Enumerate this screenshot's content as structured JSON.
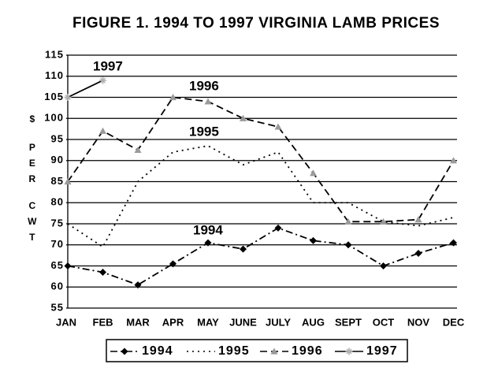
{
  "chart_data": {
    "type": "line",
    "title": "FIGURE 1.  1994 TO 1997 VIRGINIA LAMB PRICES",
    "ylabel": [
      "$",
      "PER",
      "CWT"
    ],
    "categories": [
      "JAN",
      "FEB",
      "MAR",
      "APR",
      "MAY",
      "JUNE",
      "JULY",
      "AUG",
      "SEPT",
      "OCT",
      "NOV",
      "DEC"
    ],
    "series": [
      {
        "name": "1994",
        "color": "#000000",
        "marker_color": "#000000",
        "dash": "dashdot",
        "marker": "diamond",
        "values": [
          65,
          63.5,
          60.5,
          65.5,
          70.5,
          69,
          74,
          71,
          70,
          65,
          68,
          70.5
        ]
      },
      {
        "name": "1995",
        "color": "#000000",
        "marker_color": "#000000",
        "dash": "dotted",
        "marker": "none",
        "values": [
          75,
          69.5,
          85,
          92,
          93.5,
          89,
          92,
          80,
          80,
          75.5,
          74.5,
          76.5
        ]
      },
      {
        "name": "1996",
        "color": "#000000",
        "marker_color": "#9a9a9a",
        "dash": "dashed",
        "marker": "triangle",
        "values": [
          85,
          97,
          92.5,
          105,
          104,
          100,
          98,
          87,
          75.5,
          75.5,
          76,
          90
        ]
      },
      {
        "name": "1997",
        "color": "#000000",
        "marker_color": "#b0b0b0",
        "dash": "solid",
        "marker": "star",
        "values": [
          105,
          109,
          null,
          null,
          null,
          null,
          null,
          null,
          null,
          null,
          null,
          null
        ]
      }
    ],
    "annotations": [
      {
        "text": "1997",
        "series": 3
      },
      {
        "text": "1996",
        "series": 2
      },
      {
        "text": "1995",
        "series": 1
      },
      {
        "text": "1994",
        "series": 0
      }
    ],
    "ylim": [
      55,
      115
    ],
    "yticks": [
      55,
      60,
      65,
      70,
      75,
      80,
      85,
      90,
      95,
      100,
      105,
      110,
      115
    ],
    "grid": true,
    "legend": "bottom"
  }
}
